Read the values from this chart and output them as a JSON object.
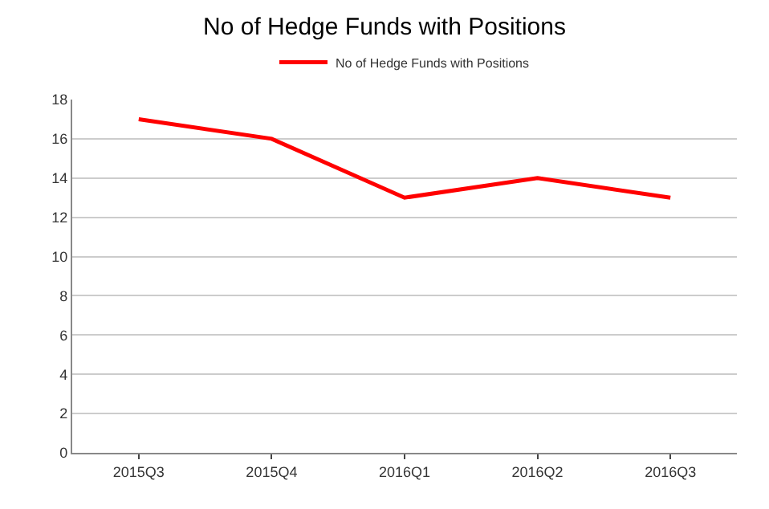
{
  "chart_data": {
    "type": "line",
    "title": "No of Hedge Funds with Positions",
    "categories": [
      "2015Q3",
      "2015Q4",
      "2016Q1",
      "2016Q2",
      "2016Q3"
    ],
    "series": [
      {
        "name": "No of Hedge Funds with Positions",
        "color": "#ff0000",
        "values": [
          17,
          16,
          13,
          14,
          13
        ]
      }
    ],
    "ylim": [
      0,
      18
    ],
    "yticks": [
      0,
      2,
      4,
      6,
      8,
      10,
      12,
      14,
      16,
      18
    ],
    "grid": "y",
    "legend": "top",
    "marker": "none",
    "line_style": "solid"
  }
}
